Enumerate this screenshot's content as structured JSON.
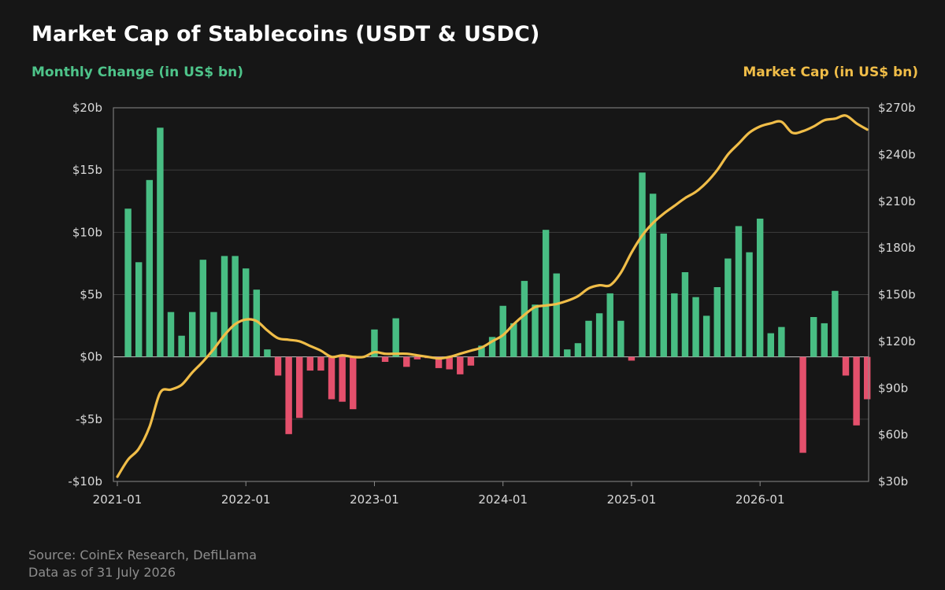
{
  "chart_data": {
    "type": "bar",
    "title": "Market Cap of Stablecoins (USDT & USDC)",
    "left_axis_label": "Monthly Change (in US$ bn)",
    "right_axis_label": "Market Cap (in US$ bn)",
    "source_line1": "Source: CoinEx Research, DefiLlama",
    "source_line2": "Data as of 31 July 2026",
    "x_tick_labels": [
      "2021-01",
      "2022-01",
      "2023-01",
      "2024-01",
      "2025-01",
      "2026-01"
    ],
    "y_left_ticks": [
      {
        "value": 20,
        "label": "$20b"
      },
      {
        "value": 15,
        "label": "$15b"
      },
      {
        "value": 10,
        "label": "$10b"
      },
      {
        "value": 5,
        "label": "$5b"
      },
      {
        "value": 0,
        "label": "$0b"
      },
      {
        "value": -5,
        "label": "-$5b"
      },
      {
        "value": -10,
        "label": "-$10b"
      }
    ],
    "y_right_ticks": [
      {
        "value": 270,
        "label": "$270b"
      },
      {
        "value": 240,
        "label": "$240b"
      },
      {
        "value": 210,
        "label": "$210b"
      },
      {
        "value": 180,
        "label": "$180b"
      },
      {
        "value": 150,
        "label": "$150b"
      },
      {
        "value": 120,
        "label": "$120b"
      },
      {
        "value": 90,
        "label": "$90b"
      },
      {
        "value": 60,
        "label": "$60b"
      },
      {
        "value": 30,
        "label": "$30b"
      }
    ],
    "ylim_left": [
      -10,
      20
    ],
    "ylim_right": [
      30,
      270
    ],
    "x_start": "2021-01",
    "grid": true,
    "colors": {
      "positive": "#48bd83",
      "negative": "#e4506c",
      "line": "#f0bd48",
      "grid": "#3e3e3e",
      "axis": "#8a8a8a"
    },
    "series": [
      {
        "type": "bar",
        "values": [
          0,
          11.9,
          7.6,
          14.2,
          18.4,
          3.6,
          1.7,
          3.6,
          7.8,
          3.6,
          8.1,
          8.1,
          7.1,
          5.4,
          0.6,
          -1.5,
          -6.2,
          -4.9,
          -1.1,
          -1.1,
          -3.4,
          -3.6,
          -4.2,
          0,
          2.2,
          -0.4,
          3.1,
          -0.8,
          -0.2,
          -0.1,
          -0.9,
          -1.0,
          -1.4,
          -0.7,
          0.9,
          1.6,
          4.1,
          2.7,
          6.1,
          4.2,
          10.2,
          6.7,
          0.6,
          1.1,
          2.9,
          3.5,
          5.1,
          2.9,
          -0.3,
          14.8,
          13.1,
          9.9,
          5.1,
          6.8,
          4.8,
          3.3,
          5.6,
          7.9,
          10.5,
          8.4,
          11.1,
          1.9,
          2.4,
          0,
          -7.7,
          3.2,
          2.7,
          5.3,
          -1.5,
          -5.5,
          -3.4
        ]
      },
      {
        "type": "line",
        "values": [
          33,
          44,
          51,
          65,
          87,
          89,
          92,
          100,
          107,
          115,
          124,
          131,
          134,
          133,
          127,
          122,
          121,
          120,
          117,
          114,
          110,
          111,
          110,
          110,
          113,
          112,
          112,
          112,
          111,
          110,
          109,
          110,
          112,
          114,
          116,
          120,
          124,
          131,
          137,
          142,
          143,
          144,
          146,
          149,
          154,
          156,
          156,
          164,
          177,
          188,
          196,
          202,
          207,
          212,
          216,
          222,
          230,
          240,
          247,
          254,
          258,
          260,
          261,
          254,
          255,
          258,
          262,
          263,
          265,
          260,
          256
        ]
      }
    ]
  }
}
